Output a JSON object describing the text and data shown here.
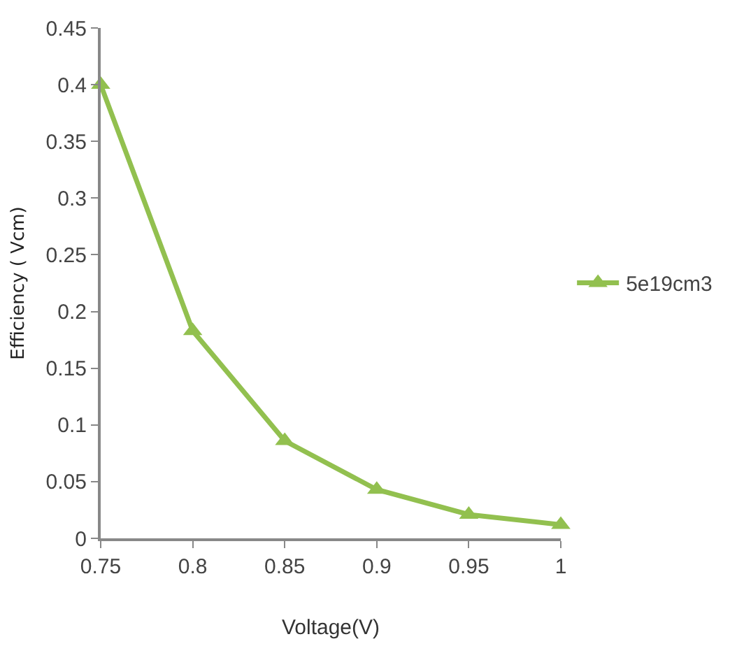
{
  "chart_data": {
    "type": "line",
    "xlabel": "Voltage(V)",
    "ylabel": "Efficiency ( Vcm)",
    "x": [
      0.75,
      0.8,
      0.85,
      0.9,
      0.95,
      1
    ],
    "series": [
      {
        "name": "5e19cm3",
        "color": "#92c04f",
        "values": [
          0.4,
          0.183,
          0.086,
          0.043,
          0.021,
          0.012
        ]
      }
    ],
    "xlim": [
      0.75,
      1
    ],
    "xticks": [
      0.75,
      0.8,
      0.85,
      0.9,
      0.95,
      1
    ],
    "ylim": [
      0,
      0.45
    ],
    "yticks": [
      0,
      0.05,
      0.1,
      0.15,
      0.2,
      0.25,
      0.3,
      0.35,
      0.4,
      0.45
    ],
    "marker": "triangle",
    "legend": "right"
  }
}
